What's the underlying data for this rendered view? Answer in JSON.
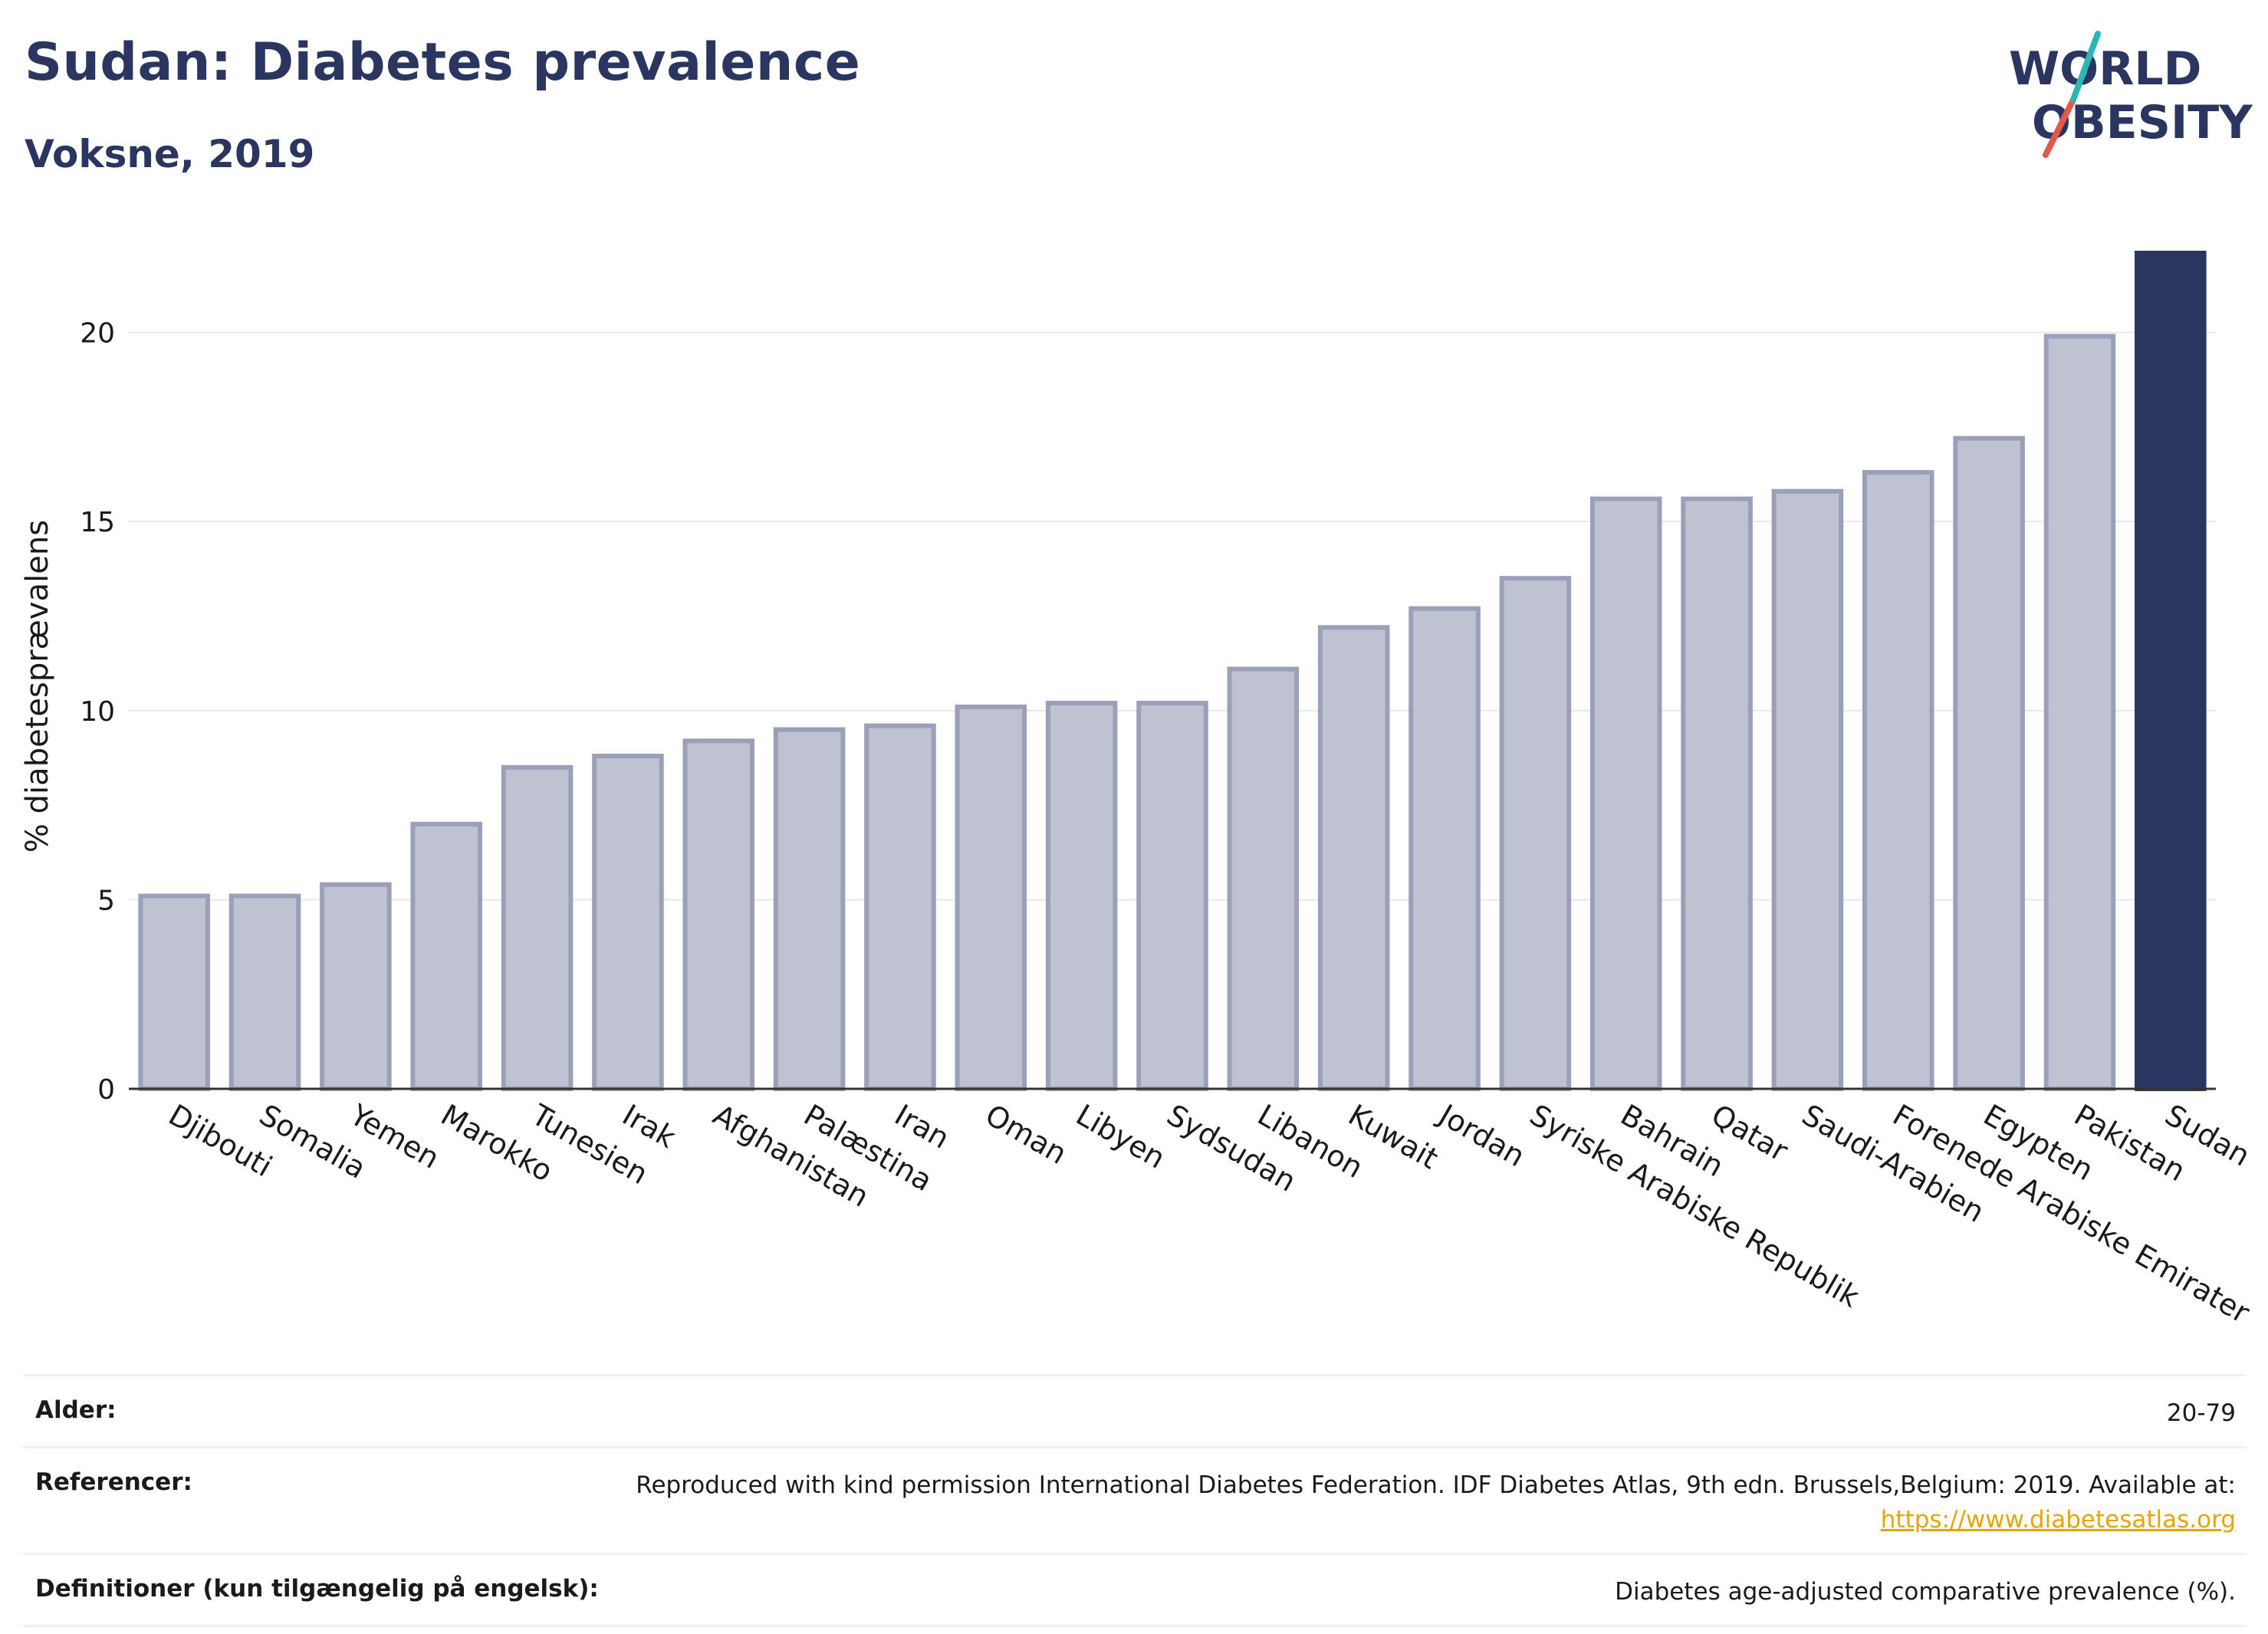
{
  "title": "Sudan: Diabetes prevalence",
  "subtitle": "Voksne, 2019",
  "logo": {
    "line1": "WORLD",
    "line2": "OBESITY",
    "accent_teal": "#2bb7b3",
    "accent_red": "#e4584a",
    "color": "#2a3560"
  },
  "colors": {
    "bar_fill": "#bfc2d0",
    "bar_stroke": "#9aa0b8",
    "highlight": "#2a3560",
    "grid": "#e6e8ef",
    "axis": "#333333",
    "link": "#e8a500"
  },
  "chart_data": {
    "type": "bar",
    "categories": [
      "Djibouti",
      "Somalia",
      "Yemen",
      "Marokko",
      "Tunesien",
      "Irak",
      "Afghanistan",
      "Palæstina",
      "Iran",
      "Oman",
      "Libyen",
      "Sydsudan",
      "Libanon",
      "Kuwait",
      "Jordan",
      "Syriske Arabiske Republik",
      "Bahrain",
      "Qatar",
      "Saudi-Arabien",
      "Forenede Arabiske Emirater",
      "Egypten",
      "Pakistan",
      "Sudan"
    ],
    "values": [
      5.1,
      5.1,
      5.4,
      7.0,
      8.5,
      8.8,
      9.2,
      9.5,
      9.6,
      10.1,
      10.2,
      10.2,
      11.1,
      12.2,
      12.7,
      13.5,
      15.6,
      15.6,
      15.8,
      16.3,
      17.2,
      19.9,
      22.1
    ],
    "highlight": "Sudan",
    "ylabel": "% diabetesprævalens",
    "yticks": [
      0,
      5,
      10,
      15,
      20
    ],
    "ylim": [
      0,
      22.1
    ],
    "grid": true
  },
  "footer": {
    "rows": [
      {
        "label": "Alder:",
        "value": "20-79"
      },
      {
        "label": "Referencer:",
        "value": "Reproduced with kind permission International Diabetes Federation. IDF Diabetes Atlas, 9th edn. Brussels,Belgium: 2019. Available at:",
        "link": "https://www.diabetesatlas.org"
      },
      {
        "label": "Definitioner (kun tilgængelig på engelsk):",
        "value": "Diabetes age-adjusted comparative prevalence (%)."
      }
    ]
  }
}
